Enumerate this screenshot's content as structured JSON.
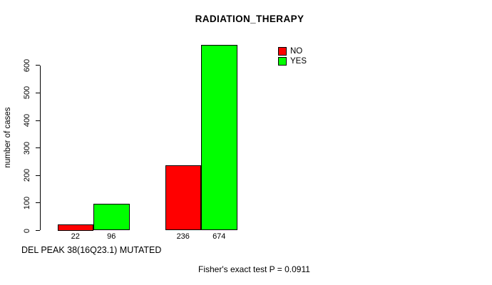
{
  "chart_data": {
    "type": "bar",
    "title": "RADIATION_THERAPY",
    "ylabel": "number of cases",
    "xlabel": "DEL PEAK 38(16Q23.1) MUTATED",
    "annotation": "Fisher's exact test P = 0.0911",
    "series": [
      {
        "name": "NO",
        "color": "#ff0000",
        "values": [
          22,
          236
        ]
      },
      {
        "name": "YES",
        "color": "#00ff00",
        "values": [
          96,
          674
        ]
      }
    ],
    "bar_value_labels": [
      "22",
      "96",
      "236",
      "674"
    ],
    "yticks": [
      0,
      100,
      200,
      300,
      400,
      500,
      600
    ],
    "ylim": [
      0,
      674
    ],
    "grid": false,
    "legend_position": "top-right",
    "colors": {
      "axis": "#000000",
      "text": "#000000",
      "background": "#ffffff"
    }
  }
}
